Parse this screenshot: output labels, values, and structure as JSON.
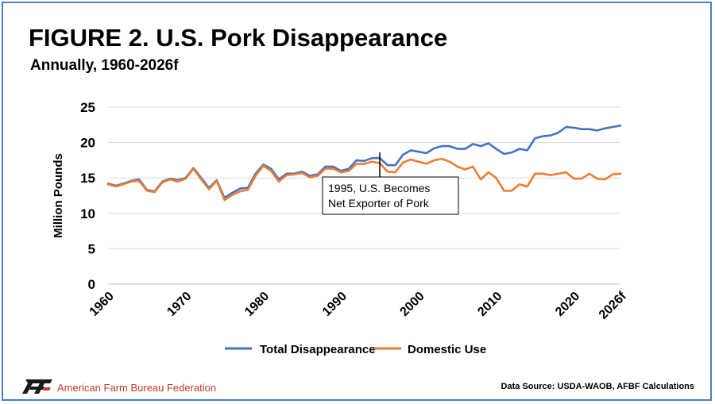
{
  "header": {
    "title": "FIGURE 2. U.S. Pork Disappearance",
    "subtitle": "Annually, 1960-2026f"
  },
  "footer": {
    "organization": "American Farm Bureau Federation",
    "source": "Data Source:  USDA-WAOB, AFBF Calculations"
  },
  "chart_data": {
    "type": "line",
    "title": "FIGURE 2. U.S. Pork Disappearance",
    "subtitle": "Annually, 1960-2026f",
    "xlabel": "",
    "ylabel": "Million Pounds",
    "ylim": [
      0,
      25
    ],
    "yticks": [
      "0",
      "5",
      "10",
      "15",
      "20",
      "25"
    ],
    "xticks": [
      {
        "x": 1960,
        "label": "1960"
      },
      {
        "x": 1970,
        "label": "1970"
      },
      {
        "x": 1980,
        "label": "1980"
      },
      {
        "x": 1990,
        "label": "1990"
      },
      {
        "x": 2000,
        "label": "2000"
      },
      {
        "x": 2010,
        "label": "2010"
      },
      {
        "x": 2020,
        "label": "2020"
      },
      {
        "x": 2026,
        "label": "2026f"
      }
    ],
    "grid": true,
    "legend_position": "bottom",
    "x": [
      1960,
      1961,
      1962,
      1963,
      1964,
      1965,
      1966,
      1967,
      1968,
      1969,
      1970,
      1971,
      1972,
      1973,
      1974,
      1975,
      1976,
      1977,
      1978,
      1979,
      1980,
      1981,
      1982,
      1983,
      1984,
      1985,
      1986,
      1987,
      1988,
      1989,
      1990,
      1991,
      1992,
      1993,
      1994,
      1995,
      1996,
      1997,
      1998,
      1999,
      2000,
      2001,
      2002,
      2003,
      2004,
      2005,
      2006,
      2007,
      2008,
      2009,
      2010,
      2011,
      2012,
      2013,
      2014,
      2015,
      2016,
      2017,
      2018,
      2019,
      2020,
      2021,
      2022,
      2023,
      2024,
      2025,
      2026
    ],
    "series": [
      {
        "name": "Total Disappearance",
        "color": "#4472c4",
        "values": [
          14.2,
          13.9,
          14.2,
          14.6,
          14.8,
          13.3,
          13.1,
          14.5,
          14.9,
          14.7,
          15.0,
          16.4,
          15.0,
          13.6,
          14.7,
          12.2,
          12.9,
          13.5,
          13.6,
          15.6,
          16.9,
          16.3,
          14.8,
          15.6,
          15.6,
          15.9,
          15.3,
          15.5,
          16.6,
          16.6,
          16.0,
          16.3,
          17.5,
          17.4,
          17.8,
          17.8,
          16.8,
          16.8,
          18.3,
          18.9,
          18.7,
          18.5,
          19.2,
          19.5,
          19.5,
          19.1,
          19.1,
          19.8,
          19.5,
          19.9,
          19.1,
          18.4,
          18.6,
          19.1,
          18.9,
          20.6,
          20.9,
          21.0,
          21.4,
          22.2,
          22.1,
          21.9,
          21.9,
          21.7,
          22.0,
          22.2,
          22.4
        ]
      },
      {
        "name": "Domestic Use",
        "color": "#ed7d31",
        "values": [
          14.1,
          13.8,
          14.1,
          14.5,
          14.6,
          13.2,
          13.0,
          14.4,
          14.8,
          14.5,
          14.9,
          16.3,
          14.8,
          13.4,
          14.6,
          11.9,
          12.6,
          13.1,
          13.3,
          15.3,
          16.7,
          16.0,
          14.5,
          15.4,
          15.5,
          15.7,
          15.1,
          15.3,
          16.3,
          16.3,
          15.8,
          16.0,
          17.0,
          17.0,
          17.3,
          17.1,
          15.9,
          15.8,
          17.2,
          17.6,
          17.3,
          17.0,
          17.5,
          17.7,
          17.3,
          16.6,
          16.2,
          16.6,
          14.8,
          15.8,
          15.0,
          13.2,
          13.2,
          14.1,
          13.8,
          15.6,
          15.6,
          15.4,
          15.6,
          15.8,
          14.9,
          14.9,
          15.6,
          14.9,
          14.8,
          15.5,
          15.6
        ]
      }
    ],
    "annotation": {
      "x": 1995,
      "lines": [
        "1995, U.S. Becomes",
        "Net Exporter of Pork"
      ]
    }
  }
}
